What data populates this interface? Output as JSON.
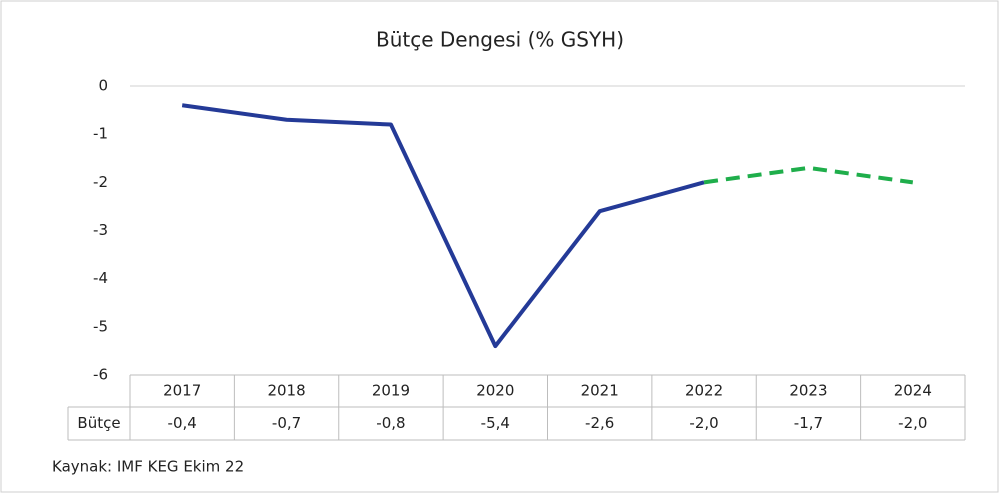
{
  "chart_data": {
    "type": "line",
    "title": "Bütçe Dengesi (% GSYH)",
    "categories": [
      "2017",
      "2018",
      "2019",
      "2020",
      "2021",
      "2022",
      "2023",
      "2024"
    ],
    "series": [
      {
        "name": "Bütçe",
        "color": "#243a97",
        "dashed_color": "#1fae4b",
        "dashed_from": "2022",
        "values": [
          -0.4,
          -0.7,
          -0.8,
          -5.4,
          -2.6,
          -2.0,
          -1.7,
          -2.0
        ],
        "value_labels": [
          "-0,4",
          "-0,7",
          "-0,8",
          "-5,4",
          "-2,6",
          "-2,0",
          "-1,7",
          "-2,0"
        ]
      }
    ],
    "ylim": [
      -6,
      0
    ],
    "yticks": [
      0,
      -1,
      -2,
      -3,
      -4,
      -5,
      -6
    ],
    "grid": false,
    "source": "Kaynak: IMF KEG Ekim 22"
  }
}
